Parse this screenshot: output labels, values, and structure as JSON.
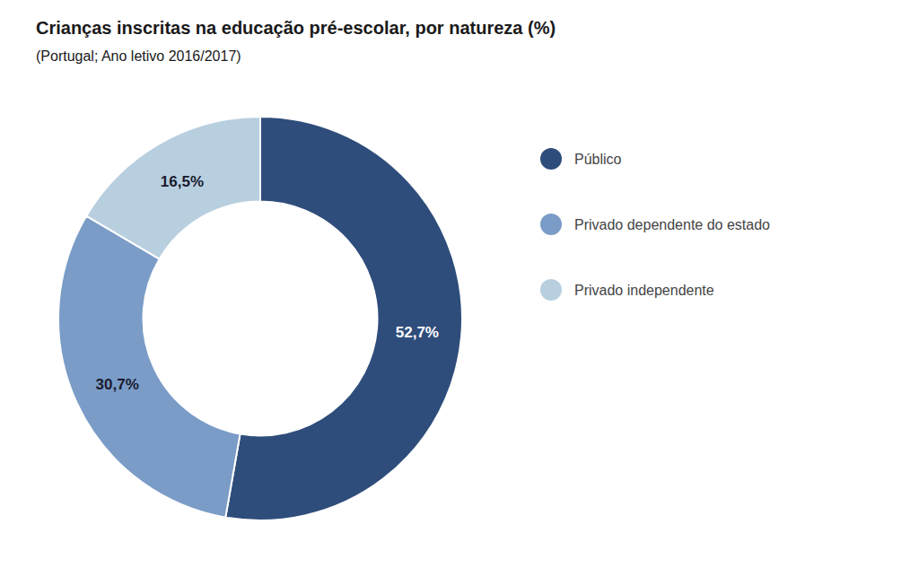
{
  "chart_data": {
    "type": "donut",
    "title": "Crianças inscritas na educação pré-escolar, por natureza (%)",
    "subtitle": "(Portugal; Ano letivo 2016/2017)",
    "categories": [
      "Público",
      "Privado dependente do estado",
      "Privado independente"
    ],
    "values": [
      52.7,
      30.7,
      16.5
    ],
    "value_labels": [
      "52,7%",
      "30,7%",
      "16,5%"
    ],
    "colors": [
      "#2e4d7b",
      "#7a9cc7",
      "#b8cfe0"
    ],
    "data_labels": true,
    "legend": "right"
  }
}
